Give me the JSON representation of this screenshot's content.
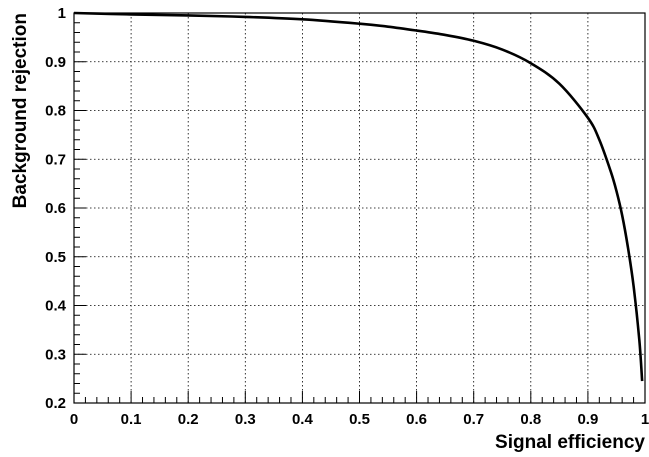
{
  "chart_data": {
    "type": "line",
    "title": "",
    "xlabel": "Signal efficiency",
    "ylabel": "Background rejection",
    "xlim": [
      0,
      1
    ],
    "ylim": [
      0.2,
      1
    ],
    "grid": true,
    "x_ticks": [
      "0",
      "0.1",
      "0.2",
      "0.3",
      "0.4",
      "0.5",
      "0.6",
      "0.7",
      "0.8",
      "0.9",
      "1"
    ],
    "y_ticks": [
      "0.2",
      "0.3",
      "0.4",
      "0.5",
      "0.6",
      "0.7",
      "0.8",
      "0.9",
      "1"
    ],
    "series": [
      {
        "x": [
          0,
          0.1,
          0.2,
          0.3,
          0.4,
          0.5,
          0.55,
          0.6,
          0.65,
          0.7,
          0.75,
          0.8,
          0.85,
          0.9,
          0.92,
          0.94,
          0.95,
          0.96,
          0.97,
          0.98,
          0.99,
          0.995
        ],
        "y": [
          1.0,
          0.997,
          0.995,
          0.992,
          0.987,
          0.978,
          0.972,
          0.964,
          0.955,
          0.943,
          0.925,
          0.897,
          0.855,
          0.785,
          0.74,
          0.675,
          0.635,
          0.585,
          0.52,
          0.44,
          0.33,
          0.245
        ]
      }
    ]
  }
}
